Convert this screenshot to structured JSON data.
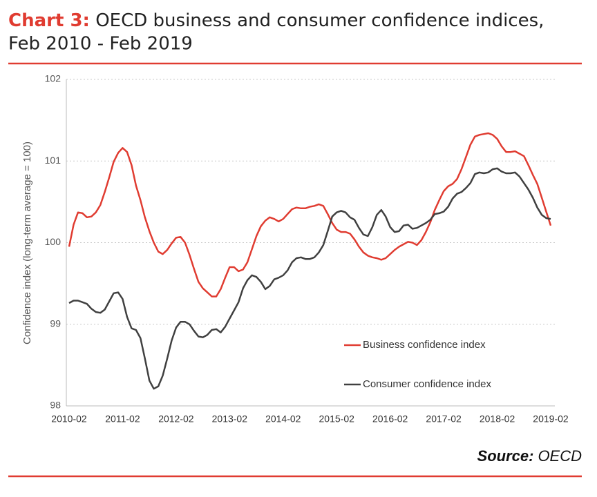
{
  "chart_data": {
    "type": "line",
    "title_prefix": "Chart 3:",
    "title": "OECD business and consumer confidence indices, Feb 2010 - Feb 2019",
    "y_axis_label": "Confidence index (long-term average = 100)",
    "source_label": "Source:",
    "source": "OECD",
    "categories": [
      "2010-02",
      null,
      null,
      null,
      null,
      null,
      null,
      null,
      null,
      null,
      null,
      null,
      "2011-02",
      null,
      null,
      null,
      null,
      null,
      null,
      null,
      null,
      null,
      null,
      null,
      "2012-02",
      null,
      null,
      null,
      null,
      null,
      null,
      null,
      null,
      null,
      null,
      null,
      "2013-02",
      null,
      null,
      null,
      null,
      null,
      null,
      null,
      null,
      null,
      null,
      null,
      "2014-02",
      null,
      null,
      null,
      null,
      null,
      null,
      null,
      null,
      null,
      null,
      null,
      "2015-02",
      null,
      null,
      null,
      null,
      null,
      null,
      null,
      null,
      null,
      null,
      null,
      "2016-02",
      null,
      null,
      null,
      null,
      null,
      null,
      null,
      null,
      null,
      null,
      null,
      "2017-02",
      null,
      null,
      null,
      null,
      null,
      null,
      null,
      null,
      null,
      null,
      null,
      "2018-02",
      null,
      null,
      null,
      null,
      null,
      null,
      null,
      null,
      null,
      null,
      null,
      "2019-02"
    ],
    "series": [
      {
        "name": "Business confidence index",
        "color": "#e03c31",
        "values": [
          99.95,
          100.22,
          100.37,
          100.36,
          100.31,
          100.32,
          100.37,
          100.46,
          100.62,
          100.8,
          100.99,
          101.1,
          101.16,
          101.11,
          100.95,
          100.7,
          100.52,
          100.31,
          100.14,
          100.0,
          99.89,
          99.86,
          99.91,
          99.99,
          100.06,
          100.07,
          100.0,
          99.85,
          99.68,
          99.52,
          99.44,
          99.39,
          99.34,
          99.34,
          99.43,
          99.57,
          99.7,
          99.7,
          99.65,
          99.67,
          99.76,
          99.92,
          100.08,
          100.2,
          100.27,
          100.31,
          100.29,
          100.26,
          100.29,
          100.35,
          100.41,
          100.43,
          100.42,
          100.42,
          100.44,
          100.45,
          100.47,
          100.45,
          100.35,
          100.24,
          100.16,
          100.13,
          100.13,
          100.11,
          100.04,
          99.95,
          99.88,
          99.84,
          99.82,
          99.81,
          99.79,
          99.81,
          99.86,
          99.91,
          99.95,
          99.98,
          100.01,
          100.0,
          99.97,
          100.03,
          100.13,
          100.25,
          100.4,
          100.52,
          100.63,
          100.69,
          100.72,
          100.78,
          100.9,
          101.05,
          101.2,
          101.3,
          101.32,
          101.33,
          101.34,
          101.32,
          101.27,
          101.18,
          101.11,
          101.11,
          101.12,
          101.09,
          101.06,
          100.95,
          100.83,
          100.72,
          100.55,
          100.38,
          100.21
        ]
      },
      {
        "name": "Consumer confidence index",
        "color": "#404040",
        "values": [
          99.26,
          99.29,
          99.29,
          99.27,
          99.25,
          99.19,
          99.15,
          99.14,
          99.18,
          99.28,
          99.38,
          99.39,
          99.31,
          99.09,
          98.95,
          98.93,
          98.83,
          98.58,
          98.31,
          98.21,
          98.24,
          98.37,
          98.58,
          98.8,
          98.96,
          99.03,
          99.03,
          99.0,
          98.92,
          98.85,
          98.84,
          98.87,
          98.93,
          98.94,
          98.9,
          98.97,
          99.07,
          99.17,
          99.27,
          99.44,
          99.54,
          99.6,
          99.58,
          99.52,
          99.43,
          99.47,
          99.55,
          99.57,
          99.6,
          99.66,
          99.76,
          99.81,
          99.82,
          99.8,
          99.8,
          99.82,
          99.88,
          99.97,
          100.14,
          100.32,
          100.37,
          100.39,
          100.37,
          100.31,
          100.28,
          100.18,
          100.1,
          100.08,
          100.19,
          100.34,
          100.4,
          100.32,
          100.19,
          100.13,
          100.14,
          100.21,
          100.22,
          100.17,
          100.18,
          100.21,
          100.24,
          100.28,
          100.35,
          100.36,
          100.38,
          100.44,
          100.54,
          100.6,
          100.62,
          100.67,
          100.73,
          100.84,
          100.86,
          100.85,
          100.86,
          100.9,
          100.91,
          100.87,
          100.85,
          100.85,
          100.86,
          100.81,
          100.73,
          100.65,
          100.55,
          100.43,
          100.34,
          100.3,
          100.29
        ]
      }
    ],
    "ylim": [
      98,
      102
    ],
    "yticks": [
      98,
      99,
      100,
      101,
      102
    ],
    "grid": true
  }
}
